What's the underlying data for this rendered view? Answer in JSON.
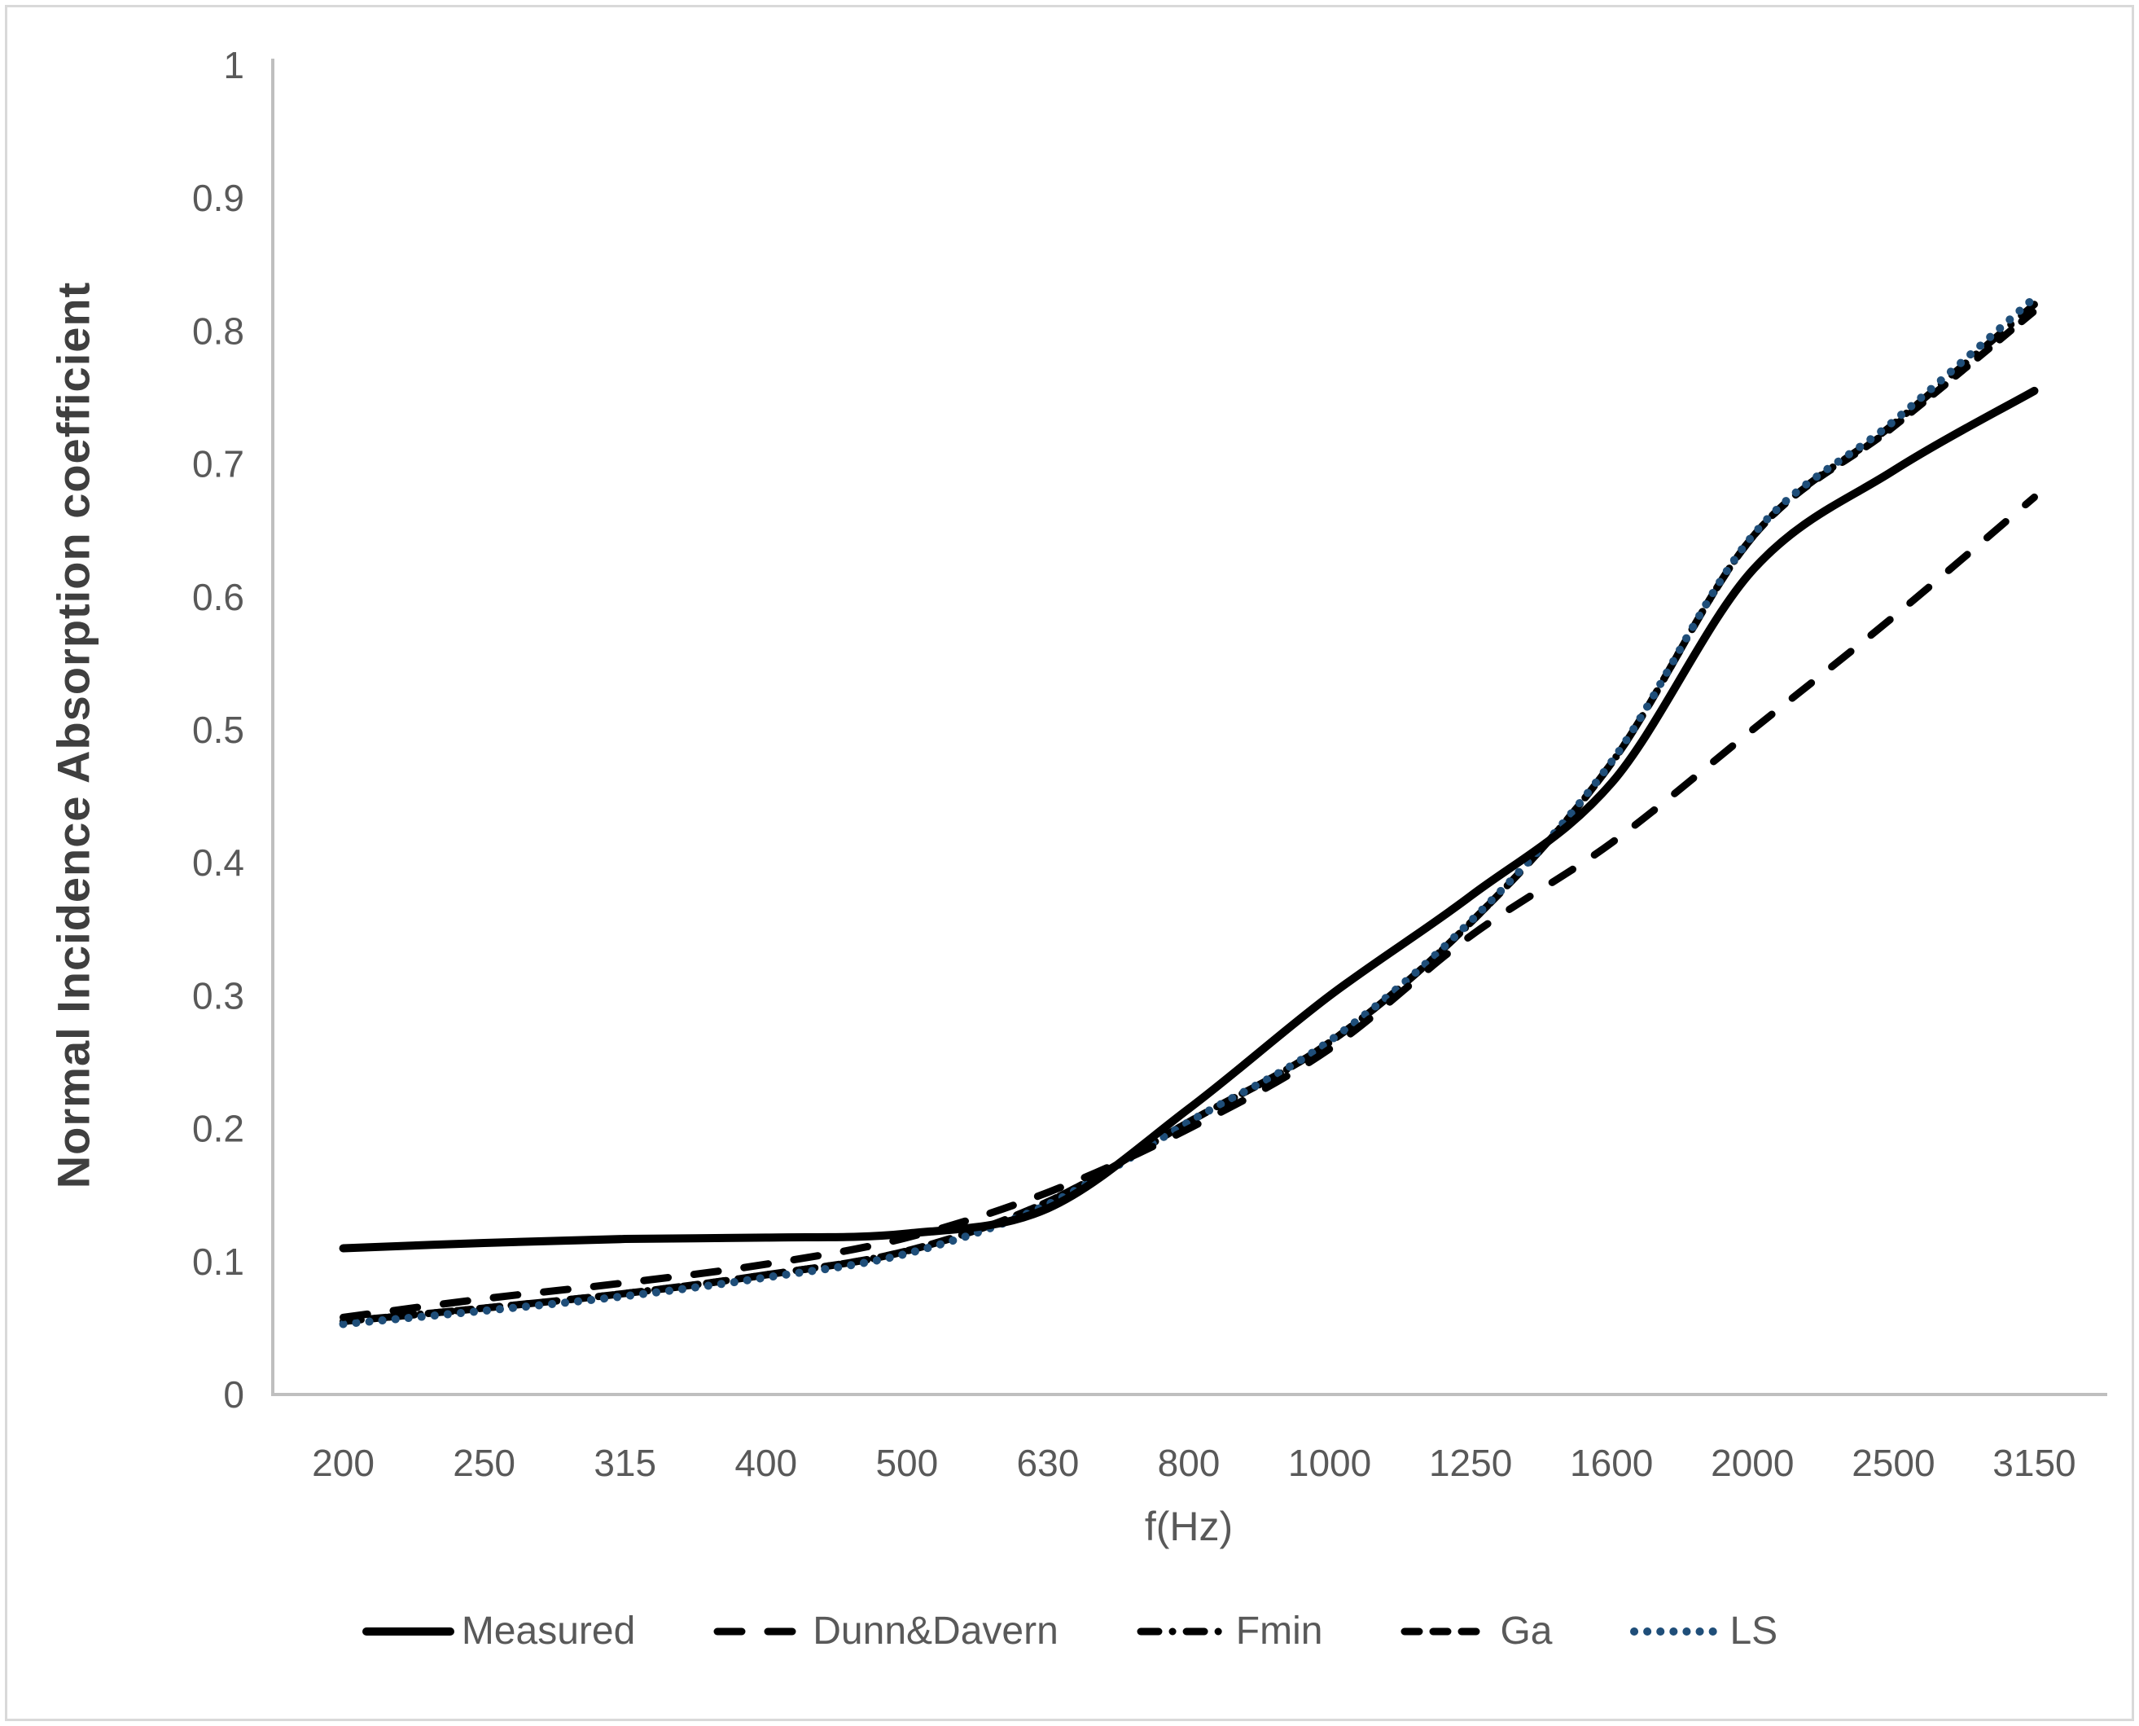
{
  "chart_data": {
    "type": "line",
    "title": "",
    "xlabel": "f(Hz)",
    "ylabel": "Normal Incidence Absorption coefficient",
    "x_categories": [
      "200",
      "250",
      "315",
      "400",
      "500",
      "630",
      "800",
      "1000",
      "1250",
      "1600",
      "2000",
      "2500",
      "3150"
    ],
    "y_ticks": [
      "0",
      "0.1",
      "0.2",
      "0.3",
      "0.4",
      "0.5",
      "0.6",
      "0.7",
      "0.8",
      "0.9",
      "1"
    ],
    "ylim": [
      0,
      1
    ],
    "grid": "off",
    "legend_position": "bottom",
    "axis_color": "#bfbfbf",
    "text_color": "#595959",
    "series": [
      {
        "name": "Measured",
        "style": "solid",
        "color": "#000000",
        "values": [
          0.11,
          0.114,
          0.117,
          0.118,
          0.121,
          0.14,
          0.215,
          0.3,
          0.375,
          0.46,
          0.62,
          0.695,
          0.755
        ]
      },
      {
        "name": "Dunn&Davern",
        "style": "long-dash",
        "color": "#000000",
        "values": [
          0.058,
          0.072,
          0.084,
          0.098,
          0.118,
          0.152,
          0.2,
          0.26,
          0.345,
          0.415,
          0.5,
          0.585,
          0.675
        ]
      },
      {
        "name": "Fmin",
        "style": "dash-dot",
        "color": "#000000",
        "values": [
          0.055,
          0.065,
          0.076,
          0.09,
          0.108,
          0.145,
          0.205,
          0.265,
          0.355,
          0.475,
          0.645,
          0.73,
          0.82
        ]
      },
      {
        "name": "Ga",
        "style": "dash",
        "color": "#000000",
        "values": [
          0.055,
          0.065,
          0.076,
          0.09,
          0.108,
          0.145,
          0.205,
          0.265,
          0.355,
          0.475,
          0.645,
          0.728,
          0.815
        ]
      },
      {
        "name": "LS",
        "style": "dot",
        "color": "#1f4e79",
        "values": [
          0.053,
          0.063,
          0.074,
          0.088,
          0.106,
          0.143,
          0.205,
          0.266,
          0.356,
          0.476,
          0.646,
          0.732,
          0.825
        ]
      }
    ]
  }
}
